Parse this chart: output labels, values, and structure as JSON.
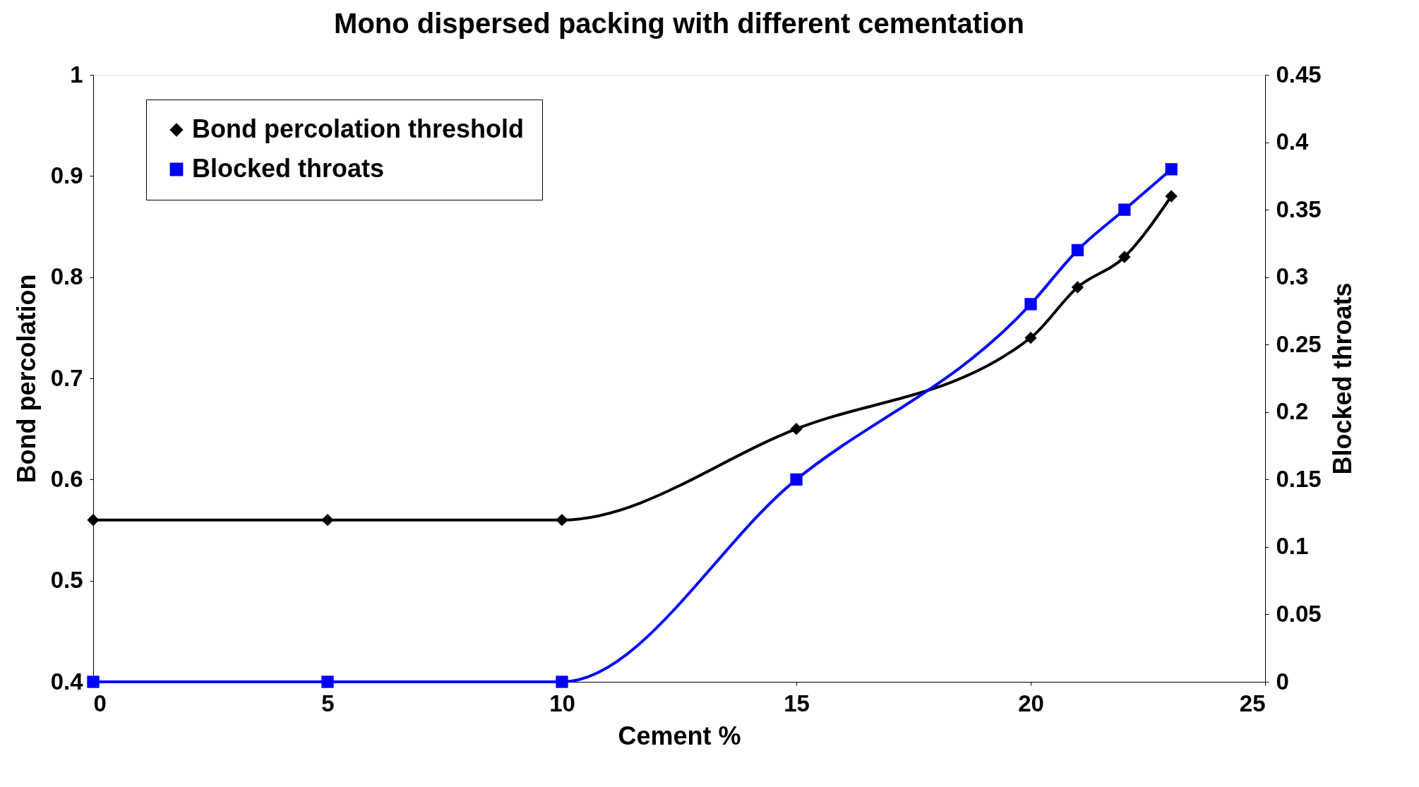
{
  "chart_data": {
    "type": "line",
    "title": "Mono dispersed packing with different cementation",
    "xlabel": "Cement %",
    "ylabel": "Bond percolation",
    "y2label": "Blocked throats",
    "x": [
      0,
      5,
      10,
      15,
      20,
      21,
      22,
      23
    ],
    "series": [
      {
        "name": "Bond percolation threshold",
        "color": "#000000",
        "marker": "diamond",
        "values": [
          0.56,
          0.56,
          0.56,
          0.65,
          0.74,
          0.79,
          0.82,
          0.88
        ]
      },
      {
        "name": "Blocked throats",
        "color": "#0000ff",
        "marker": "square",
        "axis": "y2",
        "values": [
          0,
          0,
          0,
          0.15,
          0.28,
          0.32,
          0.35,
          0.38
        ]
      }
    ],
    "xlim": [
      0,
      25
    ],
    "xticks": [
      0,
      5,
      10,
      15,
      20,
      25
    ],
    "ylim": [
      0.4,
      1
    ],
    "yticks": [
      0.4,
      0.5,
      0.6,
      0.7,
      0.8,
      0.9,
      1
    ],
    "y2lim": [
      0,
      0.45
    ],
    "y2ticks": [
      0,
      0.05,
      0.1,
      0.15,
      0.2,
      0.25,
      0.3,
      0.35,
      0.4,
      0.45
    ],
    "grid": false,
    "legend": "top left",
    "line_style": "solid"
  }
}
